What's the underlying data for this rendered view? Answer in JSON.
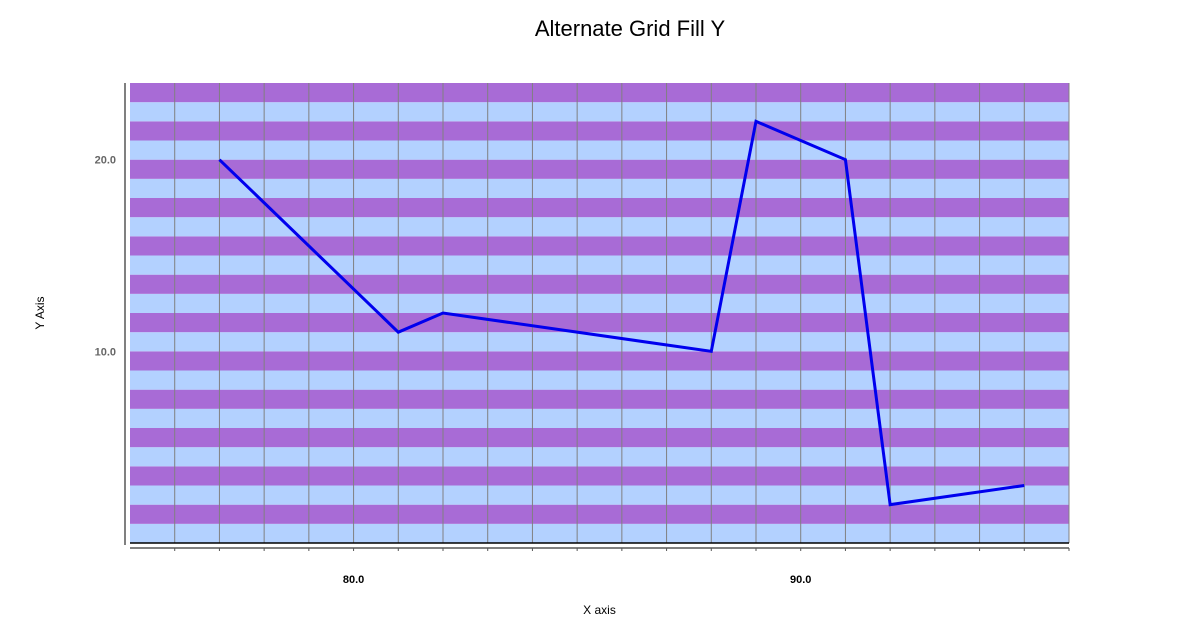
{
  "chart_data": {
    "type": "line",
    "title": "Alternate Grid Fill Y",
    "xlabel": "X axis",
    "ylabel": "Y Axis",
    "xlim": [
      75,
      96
    ],
    "ylim": [
      0,
      24
    ],
    "x_ticks": [
      80,
      90
    ],
    "x_tick_labels": [
      "80.0",
      "90.0"
    ],
    "y_ticks": [
      10,
      20
    ],
    "y_tick_labels": [
      "10.0",
      "20.0"
    ],
    "grid": true,
    "grid_fill_colors": [
      "#b3d1ff",
      "#a86bd6"
    ],
    "series": [
      {
        "color": "#0000ee",
        "x": [
          77,
          81,
          82,
          88,
          89,
          91,
          92,
          95
        ],
        "y": [
          20,
          11,
          12,
          10,
          22,
          20,
          2,
          3
        ]
      }
    ]
  }
}
